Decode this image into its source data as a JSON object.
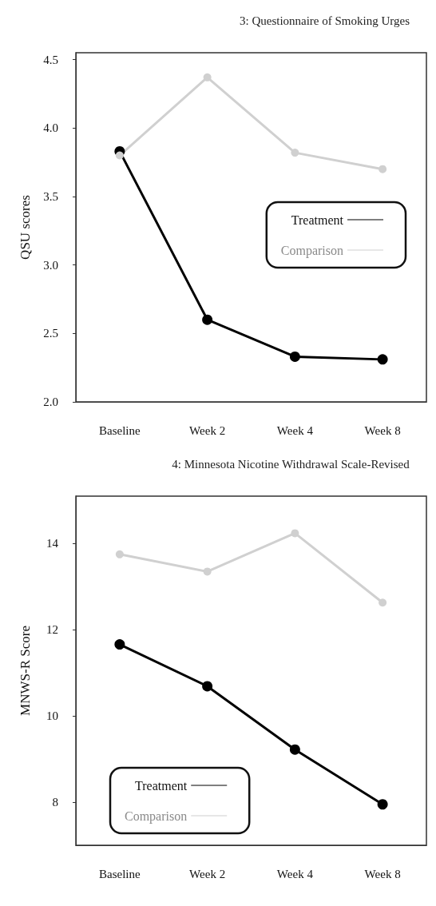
{
  "chart_data": [
    {
      "type": "line",
      "title": "3: Questionnaire of Smoking Urges",
      "ylabel": "QSU scores",
      "categories": [
        "Baseline",
        "Week 2",
        "Week 4",
        "Week 8"
      ],
      "series": [
        {
          "name": "Treatment",
          "color": "#000000",
          "values": [
            3.83,
            2.6,
            2.33,
            2.31
          ]
        },
        {
          "name": "Comparison",
          "color": "#d0d0d0",
          "values": [
            3.8,
            4.37,
            3.82,
            3.7
          ]
        }
      ],
      "ylim": [
        2.0,
        4.55
      ],
      "yticks": [
        {
          "value": 2.0,
          "label": "2.0"
        },
        2.5,
        {
          "value": 3.0,
          "label": "3.0"
        },
        3.5,
        {
          "value": 4.0,
          "label": "4.0"
        },
        4.5
      ],
      "grid": false,
      "legend": "right",
      "marker": "circle",
      "line_style": "solid"
    },
    {
      "type": "line",
      "title": "4: Minnesota Nicotine Withdrawal Scale-Revised",
      "ylabel": "MNWS-R Score",
      "categories": [
        "Baseline",
        "Week 2",
        "Week 4",
        "Week 8"
      ],
      "series": [
        {
          "name": "Treatment",
          "color": "#000000",
          "values": [
            11.66,
            10.69,
            9.22,
            7.95
          ]
        },
        {
          "name": "Comparison",
          "color": "#d0d0d0",
          "values": [
            13.75,
            13.35,
            14.24,
            12.63
          ]
        }
      ],
      "ylim": [
        7,
        15.1
      ],
      "yticks": [
        8,
        10,
        12,
        14
      ],
      "grid": false,
      "legend": "bottom left",
      "marker": "circle",
      "line_style": "solid"
    }
  ]
}
